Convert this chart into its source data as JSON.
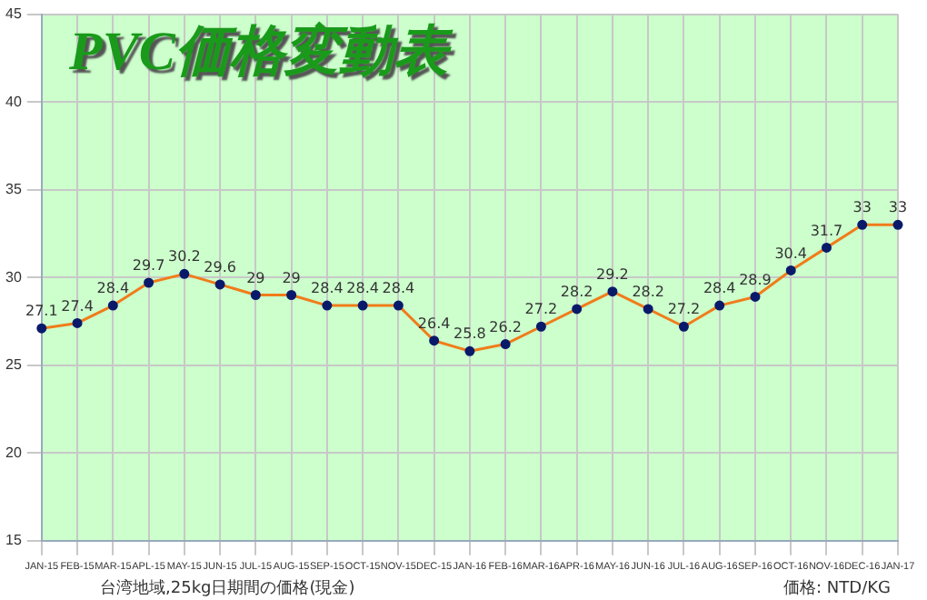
{
  "chart_data": {
    "type": "line",
    "title": "PVC価格変動表",
    "categories": [
      "JAN-15",
      "FEB-15",
      "MAR-15",
      "APL-15",
      "MAY-15",
      "JUN-15",
      "JUL-15",
      "AUG-15",
      "SEP-15",
      "OCT-15",
      "NOV-15",
      "DEC-15",
      "JAN-16",
      "FEB-16",
      "MAR-16",
      "APR-16",
      "MAY-16",
      "JUN-16",
      "JUL-16",
      "AUG-16",
      "SEP-16",
      "OCT-16",
      "NOV-16",
      "DEC-16",
      "JAN-17"
    ],
    "series": [
      {
        "color": "#f07c1a",
        "values": [
          27.1,
          27.4,
          28.4,
          29.7,
          30.2,
          29.6,
          29,
          29,
          28.4,
          28.4,
          28.4,
          26.4,
          25.8,
          26.2,
          27.2,
          28.2,
          29.2,
          28.2,
          27.2,
          28.4,
          28.9,
          30.4,
          31.7,
          33,
          33
        ]
      }
    ],
    "ylim": [
      15,
      45
    ],
    "yticks": [
      15,
      20,
      25,
      30,
      35,
      40,
      45
    ],
    "grid": true,
    "legend": false,
    "marker": "circle",
    "line_style": "solid",
    "data_labels": true,
    "annotations": [
      "台湾地域,25kg日期間の価格(現金)",
      "価格: NTD/KG"
    ]
  }
}
